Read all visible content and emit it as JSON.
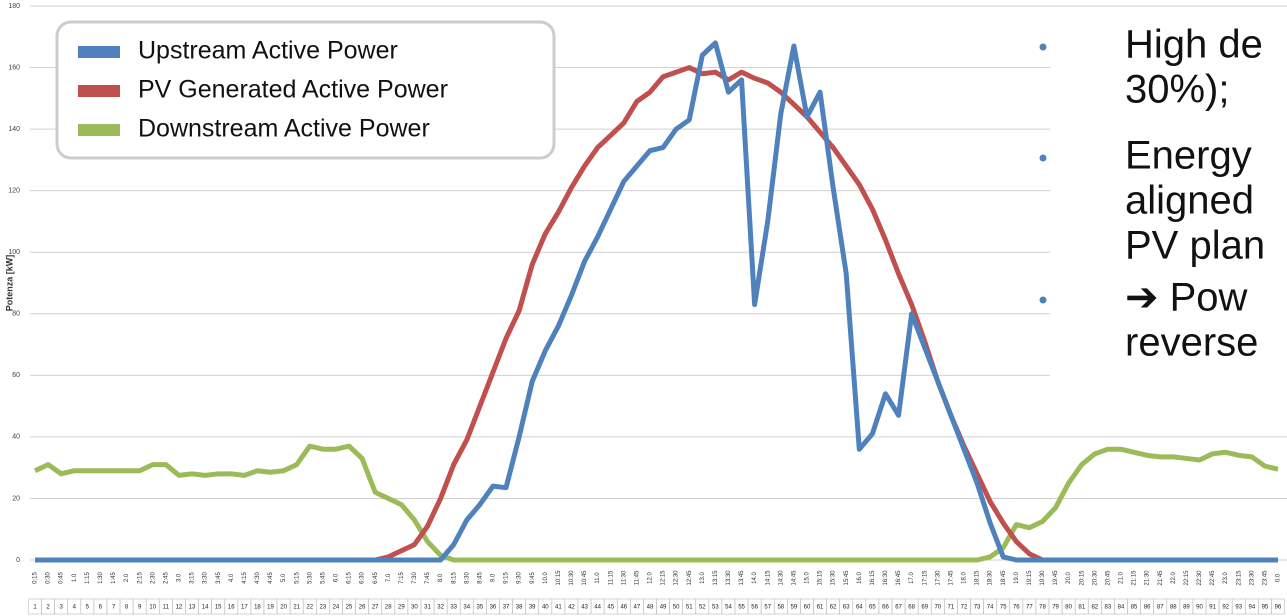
{
  "chart_data": {
    "type": "line",
    "ylabel": "Potenza [kW]",
    "ylim": [
      0,
      180
    ],
    "yticks": [
      0,
      20,
      40,
      60,
      80,
      100,
      120,
      140,
      160,
      180
    ],
    "grid": true,
    "categories": [
      "0:15",
      "0:30",
      "0:45",
      "1.0",
      "1:15",
      "1:30",
      "1:45",
      "2.0",
      "2:15",
      "2:30",
      "2:45",
      "3.0",
      "3:15",
      "3:30",
      "3:45",
      "4.0",
      "4:15",
      "4:30",
      "4:45",
      "5.0",
      "5:15",
      "5:30",
      "5:45",
      "6.0",
      "6:15",
      "6:30",
      "6:45",
      "7.0",
      "7:15",
      "7:30",
      "7:45",
      "8.0",
      "8:15",
      "8:30",
      "8:45",
      "9.0",
      "9:15",
      "9:30",
      "9:45",
      "10.0",
      "10:15",
      "10:30",
      "10:45",
      "11.0",
      "11:15",
      "11:30",
      "11:45",
      "12.0",
      "12:15",
      "12:30",
      "12:45",
      "13.0",
      "13:15",
      "13:30",
      "13:45",
      "14.0",
      "14:15",
      "14:30",
      "14:45",
      "15.0",
      "15:15",
      "15:30",
      "15:45",
      "16.0",
      "16:15",
      "16:30",
      "16:45",
      "17.0",
      "17:15",
      "17:30",
      "17:45",
      "18.0",
      "18:15",
      "18:30",
      "18:45",
      "19.0",
      "19:15",
      "19:30",
      "19:45",
      "20.0",
      "20:15",
      "20:30",
      "20:45",
      "21.0",
      "21:15",
      "21:30",
      "21:45",
      "22.0",
      "22:15",
      "22:30",
      "22:45",
      "23.0",
      "23:15",
      "23:30",
      "23:45",
      "0.0"
    ],
    "index_labels": [
      1,
      2,
      3,
      4,
      5,
      6,
      7,
      8,
      9,
      10,
      11,
      12,
      13,
      14,
      15,
      16,
      17,
      18,
      19,
      20,
      21,
      22,
      23,
      24,
      25,
      26,
      27,
      28,
      29,
      30,
      31,
      32,
      33,
      34,
      35,
      36,
      37,
      38,
      39,
      40,
      41,
      42,
      43,
      44,
      45,
      46,
      47,
      48,
      49,
      50,
      51,
      52,
      53,
      54,
      55,
      56,
      57,
      58,
      59,
      60,
      61,
      62,
      63,
      64,
      65,
      66,
      67,
      68,
      69,
      70,
      71,
      72,
      73,
      74,
      75,
      76,
      77,
      78,
      79,
      80,
      81,
      82,
      83,
      84,
      85,
      86,
      87,
      88,
      89,
      90,
      91,
      92,
      93,
      94,
      95,
      96
    ],
    "series": [
      {
        "name": "Upstream Active Power",
        "color": "#4f81bd",
        "values": [
          0,
          0,
          0,
          0,
          0,
          0,
          0,
          0,
          0,
          0,
          0,
          0,
          0,
          0,
          0,
          0,
          0,
          0,
          0,
          0,
          0,
          0,
          0,
          0,
          0,
          0,
          0,
          0,
          0,
          0,
          0,
          0,
          5,
          13,
          18,
          24,
          23.5,
          40,
          58,
          68,
          76,
          86,
          97,
          105,
          114,
          123,
          128,
          133,
          134,
          140,
          143,
          164,
          168,
          152,
          156,
          83,
          110,
          145,
          167,
          144,
          152,
          121,
          93,
          36,
          41,
          54,
          47,
          80,
          69,
          58,
          47,
          36,
          25,
          12,
          1,
          0,
          0,
          0,
          0,
          0,
          0,
          0,
          0,
          0,
          0,
          0,
          0,
          0,
          0,
          0,
          0,
          0,
          0,
          0,
          0,
          0
        ]
      },
      {
        "name": "PV Generated Active Power",
        "color": "#c0504d",
        "values": [
          0,
          0,
          0,
          0,
          0,
          0,
          0,
          0,
          0,
          0,
          0,
          0,
          0,
          0,
          0,
          0,
          0,
          0,
          0,
          0,
          0,
          0,
          0,
          0,
          0,
          0,
          0,
          1,
          3,
          5,
          11,
          20,
          31,
          39,
          50,
          61,
          72,
          81,
          96,
          106,
          113,
          121,
          128,
          134,
          138,
          142,
          149,
          152,
          157,
          158.5,
          160,
          158,
          158.5,
          156,
          158.5,
          156.5,
          155,
          152,
          148,
          144,
          139,
          134,
          128,
          122,
          114,
          104,
          93,
          83,
          71,
          58,
          47,
          37,
          28,
          19,
          12,
          6,
          2,
          0,
          0,
          0,
          0,
          0,
          0,
          0,
          0,
          0,
          0,
          0,
          0,
          0,
          0,
          0,
          0,
          0,
          0,
          0
        ]
      },
      {
        "name": "Downstream Active Power",
        "color": "#9bbb59",
        "values": [
          29,
          31,
          28,
          29,
          29,
          29,
          29,
          29,
          29,
          31,
          31,
          27.5,
          28,
          27.5,
          28,
          28,
          27.5,
          29,
          28.5,
          29,
          31,
          37,
          36,
          36,
          37,
          33,
          22,
          20,
          18,
          13,
          6,
          1.5,
          0,
          0,
          0,
          0,
          0,
          0,
          0,
          0,
          0,
          0,
          0,
          0,
          0,
          0,
          0,
          0,
          0,
          0,
          0,
          0,
          0,
          0,
          0,
          0,
          0,
          0,
          0,
          0,
          0,
          0,
          0,
          0,
          0,
          0,
          0,
          0,
          0,
          0,
          0,
          0,
          0,
          1,
          4,
          11.5,
          10.5,
          12.5,
          17,
          25,
          31,
          34.5,
          36,
          36,
          35,
          34,
          33.5,
          33.5,
          33,
          32.5,
          34.5,
          35,
          34,
          33.5,
          30.5,
          29.5
        ]
      }
    ]
  },
  "bullets": [
    [
      "High de",
      "30%);"
    ],
    [
      "Energy",
      "aligned",
      "PV plan"
    ],
    [
      "➔ Pow",
      "reverse"
    ]
  ]
}
